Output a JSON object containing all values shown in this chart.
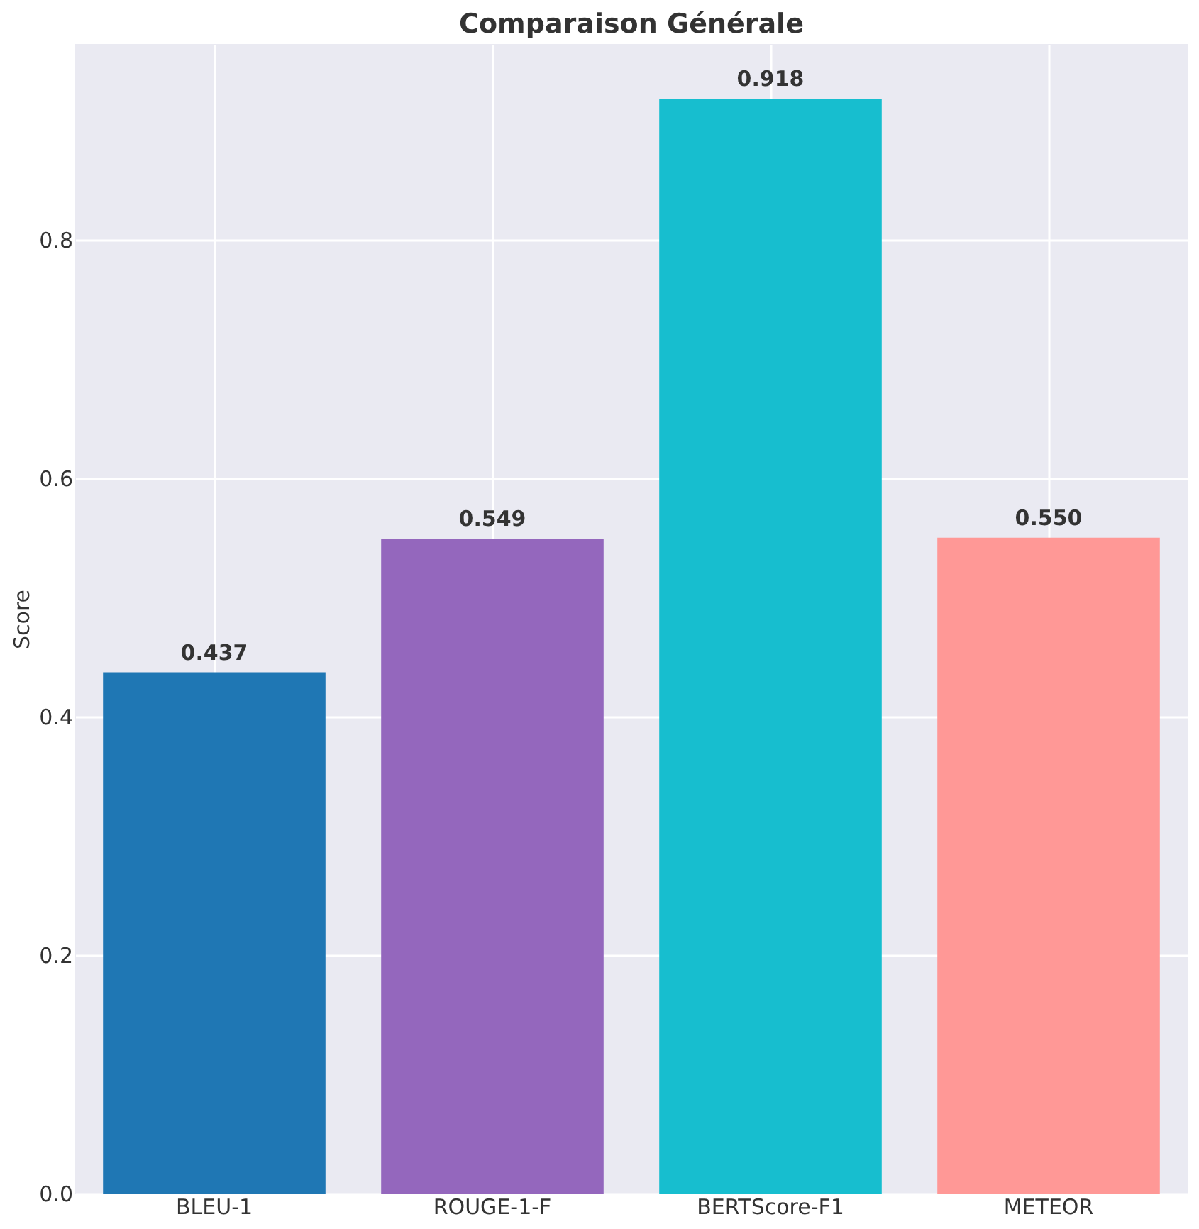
{
  "chart_data": {
    "type": "bar",
    "title": "Comparaison Générale",
    "ylabel": "Score",
    "categories": [
      "BLEU-1",
      "ROUGE-1-F",
      "BERTScore-F1",
      "METEOR"
    ],
    "values": [
      0.437,
      0.549,
      0.918,
      0.55
    ],
    "value_labels": [
      "0.437",
      "0.549",
      "0.918",
      "0.550"
    ],
    "colors": [
      "#1f77b4",
      "#9467bd",
      "#17becf",
      "#ff9896"
    ],
    "ylim": [
      0,
      0.964
    ],
    "yticks": [
      {
        "value": 0,
        "label": "0.0"
      },
      0.2,
      0.4,
      0.6,
      0.8
    ],
    "grid": true
  }
}
